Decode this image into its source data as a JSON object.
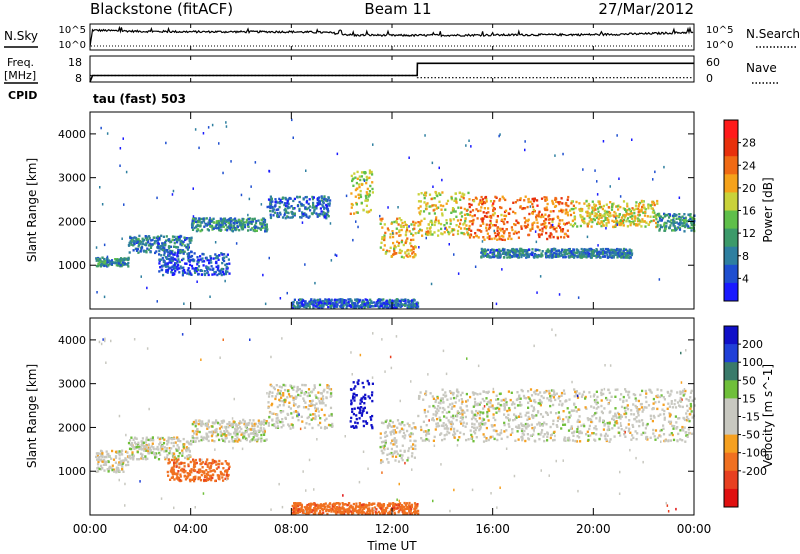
{
  "header": {
    "station": "Blackstone (fitACF)",
    "beam": "Beam 11",
    "date": "27/Mar/2012"
  },
  "noise_panel": {
    "left_label": "N.Sky",
    "left_ticks": [
      "10^5",
      "10^0"
    ],
    "right_ticks": [
      "10^5",
      "10^0"
    ],
    "right_label": "N.Search"
  },
  "freq_panel": {
    "left_label_1": "Freq.",
    "left_label_2": "[MHz]",
    "left_ticks": [
      "18",
      "8"
    ],
    "right_ticks": [
      "60",
      "0"
    ],
    "right_label": "Nave",
    "cpid_label": "CPID",
    "cpid_value": "tau (fast) 503"
  },
  "x_axis": {
    "label": "Time UT",
    "ticks": [
      "00:00",
      "04:00",
      "08:00",
      "12:00",
      "16:00",
      "20:00",
      "00:00"
    ]
  },
  "colors": {
    "power_scale": [
      "#1a1aff",
      "#1f4fd0",
      "#2e7fa0",
      "#3c9a6a",
      "#5fbf4a",
      "#c9d23a",
      "#f5a21a",
      "#f06a14",
      "#e8300c",
      "#ff1a1a"
    ],
    "velocity_scale": [
      "#1010c8",
      "#2040d8",
      "#3a7a6a",
      "#6fbf3a",
      "#c8c8c0",
      "#c8c8c0",
      "#f5a020",
      "#f07020",
      "#e84020",
      "#e01010"
    ],
    "frame": "#000000"
  },
  "chart_data": [
    {
      "type": "line",
      "name_label": "N.Sky",
      "x_unit": "hours UT",
      "x": [
        0,
        0.1,
        2,
        4,
        6,
        8,
        9.5,
        10.5,
        11,
        12,
        13,
        16,
        20,
        22,
        24
      ],
      "y_log10": [
        0,
        4.2,
        3.9,
        3.8,
        3.8,
        3.8,
        3.6,
        2.9,
        3.0,
        2.9,
        2.9,
        3.0,
        3.1,
        3.3,
        3.7
      ],
      "yticks": [
        "10^0",
        "10^5"
      ]
    },
    {
      "type": "line",
      "name_label": "Freq.",
      "x_unit": "hours UT",
      "x": [
        0,
        0.1,
        13,
        13.01,
        24
      ],
      "y": [
        8,
        10.5,
        10.5,
        15.2,
        15.2
      ],
      "ylim": [
        8,
        18
      ],
      "secondary": {
        "label": "Nave",
        "ylim": [
          0,
          60
        ],
        "x": [
          0,
          13,
          13.01,
          24
        ],
        "y": [
          15,
          15,
          10,
          10
        ]
      }
    },
    {
      "type": "heatmap",
      "title": "Power [dB]",
      "xlabel": "Time UT",
      "ylabel": "Slant Range [km]",
      "xlim": [
        0,
        24
      ],
      "ylim": [
        0,
        4500
      ],
      "yticks": [
        1000,
        2000,
        3000,
        4000
      ],
      "colorbar_ticks": [
        4,
        8,
        12,
        16,
        20,
        24,
        28
      ],
      "colorbar_range": [
        0,
        32
      ],
      "echo_bands": [
        {
          "x0": 0.2,
          "x1": 1.5,
          "r0": 1000,
          "r1": 1200,
          "value": 10
        },
        {
          "x0": 1.5,
          "x1": 4.0,
          "r0": 1300,
          "r1": 1700,
          "value": 8
        },
        {
          "x0": 4.0,
          "x1": 7.0,
          "r0": 1800,
          "r1": 2100,
          "value": 9
        },
        {
          "x0": 7.0,
          "x1": 9.5,
          "r0": 2100,
          "r1": 2600,
          "value": 7
        },
        {
          "x0": 2.7,
          "x1": 5.5,
          "r0": 800,
          "r1": 1300,
          "value": 5
        },
        {
          "x0": 10.3,
          "x1": 11.2,
          "r0": 2200,
          "r1": 3200,
          "value": 18
        },
        {
          "x0": 11.5,
          "x1": 12.9,
          "r0": 1200,
          "r1": 2100,
          "value": 20
        },
        {
          "x0": 13.0,
          "x1": 15.0,
          "r0": 1700,
          "r1": 2700,
          "value": 18
        },
        {
          "x0": 15.0,
          "x1": 19.0,
          "r0": 1600,
          "r1": 2600,
          "value": 24
        },
        {
          "x0": 19.0,
          "x1": 22.5,
          "r0": 1900,
          "r1": 2500,
          "value": 18
        },
        {
          "x0": 22.5,
          "x1": 24.0,
          "r0": 1800,
          "r1": 2200,
          "value": 10
        },
        {
          "x0": 15.5,
          "x1": 21.5,
          "r0": 1200,
          "r1": 1400,
          "value": 8
        },
        {
          "x0": 8.0,
          "x1": 13.0,
          "r0": 50,
          "r1": 250,
          "value": 6
        }
      ]
    },
    {
      "type": "heatmap",
      "title": "Velocity [m s^-1]",
      "xlabel": "Time UT",
      "ylabel": "Slant Range [km]",
      "xlim": [
        0,
        24
      ],
      "ylim": [
        0,
        4500
      ],
      "yticks": [
        1000,
        2000,
        3000,
        4000
      ],
      "colorbar_ticks": [
        200,
        100,
        50,
        15,
        -15,
        -50,
        -100,
        -200
      ],
      "echo_bands": [
        {
          "x0": 0.2,
          "x1": 1.5,
          "r0": 1000,
          "r1": 1500,
          "value": 0
        },
        {
          "x0": 1.5,
          "x1": 4.0,
          "r0": 1300,
          "r1": 1800,
          "value": 0
        },
        {
          "x0": 4.0,
          "x1": 7.0,
          "r0": 1700,
          "r1": 2200,
          "value": 0
        },
        {
          "x0": 7.0,
          "x1": 9.6,
          "r0": 2000,
          "r1": 3000,
          "value": 0
        },
        {
          "x0": 3.0,
          "x1": 5.5,
          "r0": 800,
          "r1": 1300,
          "value": -60
        },
        {
          "x0": 10.3,
          "x1": 11.2,
          "r0": 2000,
          "r1": 3100,
          "value": 200
        },
        {
          "x0": 11.5,
          "x1": 12.9,
          "r0": 1200,
          "r1": 2200,
          "value": 0
        },
        {
          "x0": 13.0,
          "x1": 24.0,
          "r0": 1700,
          "r1": 2900,
          "value": 0
        },
        {
          "x0": 8.0,
          "x1": 13.0,
          "r0": 50,
          "r1": 300,
          "value": -60
        }
      ]
    }
  ]
}
